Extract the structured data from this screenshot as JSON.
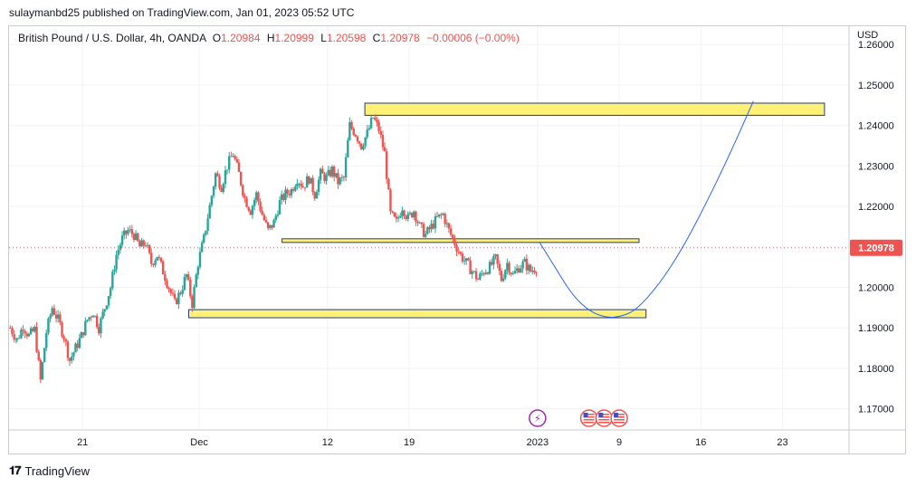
{
  "header": {
    "published": "sulaymanbd25 published on TradingView.com, Jan 01, 2023 05:52 UTC"
  },
  "legend": {
    "symbol": "British Pound / U.S. Dollar, 4h, OANDA",
    "o_label": "O",
    "o": "1.20984",
    "h_label": "H",
    "h": "1.20999",
    "l_label": "L",
    "l": "1.20598",
    "c_label": "C",
    "c": "1.20978",
    "change": "−0.00006 (−0.00%)"
  },
  "price_axis": {
    "currency": "USD"
  },
  "footer": {
    "brand": "TradingView"
  },
  "colors": {
    "up": "#26a69a",
    "down": "#ef5350",
    "zone_fill": "#fff176",
    "zone_border": "#1e3a8a",
    "projection": "#2962ff",
    "price_tag": "#ef5350"
  },
  "chart_data": {
    "type": "candlestick",
    "ylim": [
      1.165,
      1.2645
    ],
    "y_ticks": [
      "1.17000",
      "1.18000",
      "1.19000",
      "1.20000",
      "1.21000",
      "1.22000",
      "1.23000",
      "1.24000",
      "1.25000",
      "1.26000"
    ],
    "x_ticks": [
      {
        "label": "21",
        "x": 24
      },
      {
        "label": "Dec",
        "x": 34
      },
      {
        "label": "12",
        "x": 45
      },
      {
        "label": "19",
        "x": 52
      },
      {
        "label": "2023",
        "x": 63
      },
      {
        "label": "9",
        "x": 70
      },
      {
        "label": "16",
        "x": 77
      },
      {
        "label": "23",
        "x": 84
      }
    ],
    "xlim": [
      17.7,
      89.7
    ],
    "last_price": "1.20978",
    "last_value": 1.20978,
    "path": [
      [
        17.8,
        1.19
      ],
      [
        18.4,
        1.187
      ],
      [
        18.9,
        1.1905
      ],
      [
        19.4,
        1.188
      ],
      [
        19.9,
        1.1895
      ],
      [
        20.4,
        1.177
      ],
      [
        20.9,
        1.189
      ],
      [
        21.4,
        1.195
      ],
      [
        21.9,
        1.192
      ],
      [
        22.4,
        1.188
      ],
      [
        22.9,
        1.182
      ],
      [
        23.4,
        1.185
      ],
      [
        23.9,
        1.188
      ],
      [
        24.4,
        1.192
      ],
      [
        24.9,
        1.194
      ],
      [
        25.4,
        1.19
      ],
      [
        25.9,
        1.195
      ],
      [
        26.4,
        1.2
      ],
      [
        26.9,
        1.208
      ],
      [
        27.4,
        1.212
      ],
      [
        27.9,
        1.214
      ],
      [
        28.4,
        1.213
      ],
      [
        28.9,
        1.21
      ],
      [
        29.4,
        1.211
      ],
      [
        29.9,
        1.206
      ],
      [
        30.4,
        1.208
      ],
      [
        30.9,
        1.204
      ],
      [
        31.4,
        1.2
      ],
      [
        31.9,
        1.196
      ],
      [
        32.4,
        1.199
      ],
      [
        32.9,
        1.203
      ],
      [
        33.4,
        1.196
      ],
      [
        33.9,
        1.206
      ],
      [
        34.4,
        1.212
      ],
      [
        34.9,
        1.22
      ],
      [
        35.4,
        1.228
      ],
      [
        35.9,
        1.225
      ],
      [
        36.4,
        1.23
      ],
      [
        36.9,
        1.233
      ],
      [
        37.4,
        1.228
      ],
      [
        37.9,
        1.222
      ],
      [
        38.4,
        1.219
      ],
      [
        38.9,
        1.223
      ],
      [
        39.4,
        1.218
      ],
      [
        39.9,
        1.214
      ],
      [
        40.4,
        1.216
      ],
      [
        40.9,
        1.221
      ],
      [
        41.4,
        1.223
      ],
      [
        41.9,
        1.224
      ],
      [
        42.4,
        1.227
      ],
      [
        42.9,
        1.225
      ],
      [
        43.4,
        1.227
      ],
      [
        43.9,
        1.223
      ],
      [
        44.4,
        1.228
      ],
      [
        44.9,
        1.227
      ],
      [
        45.4,
        1.229
      ],
      [
        45.9,
        1.226
      ],
      [
        46.4,
        1.227
      ],
      [
        46.9,
        1.24
      ],
      [
        47.4,
        1.238
      ],
      [
        47.9,
        1.235
      ],
      [
        48.4,
        1.238
      ],
      [
        48.9,
        1.242
      ],
      [
        49.4,
        1.239
      ],
      [
        49.9,
        1.233
      ],
      [
        50.4,
        1.218
      ],
      [
        50.9,
        1.216
      ],
      [
        51.4,
        1.22
      ],
      [
        51.9,
        1.217
      ],
      [
        52.4,
        1.219
      ],
      [
        52.9,
        1.215
      ],
      [
        53.4,
        1.213
      ],
      [
        53.9,
        1.215
      ],
      [
        54.4,
        1.217
      ],
      [
        54.9,
        1.218
      ],
      [
        55.4,
        1.214
      ],
      [
        55.9,
        1.211
      ],
      [
        56.4,
        1.208
      ],
      [
        56.9,
        1.206
      ],
      [
        57.4,
        1.204
      ],
      [
        57.9,
        1.202
      ],
      [
        58.4,
        1.204
      ],
      [
        58.9,
        1.205
      ],
      [
        59.4,
        1.207
      ],
      [
        59.9,
        1.202
      ],
      [
        60.4,
        1.206
      ],
      [
        60.9,
        1.203
      ],
      [
        61.4,
        1.205
      ],
      [
        61.9,
        1.206
      ],
      [
        62.4,
        1.204
      ],
      [
        62.9,
        1.205
      ],
      [
        63.0,
        1.2098
      ]
    ],
    "zones": [
      {
        "name": "resistance-zone",
        "x1": 48.2,
        "x2": 87.6,
        "y1": 1.2455,
        "y2": 1.2425
      },
      {
        "name": "mid-zone",
        "x1": 41.1,
        "x2": 71.7,
        "y1": 1.212,
        "y2": 1.2111
      },
      {
        "name": "support-zone",
        "x1": 33.1,
        "x2": 72.3,
        "y1": 1.1945,
        "y2": 1.1925
      }
    ],
    "projection": [
      [
        63.2,
        1.211
      ],
      [
        64.5,
        1.205
      ],
      [
        66.0,
        1.198
      ],
      [
        67.5,
        1.194
      ],
      [
        68.9,
        1.1925
      ],
      [
        70.2,
        1.1928
      ],
      [
        71.5,
        1.1945
      ],
      [
        73.5,
        1.201
      ],
      [
        75.5,
        1.21
      ],
      [
        77.5,
        1.221
      ],
      [
        79.5,
        1.233
      ],
      [
        81.5,
        1.246
      ]
    ],
    "events": [
      {
        "name": "lightning-event-icon",
        "x": 63.0,
        "glyph": "⚡",
        "color": "#9c27b0"
      },
      {
        "name": "us-flag-event-icon-1",
        "x": 67.4,
        "glyph": "",
        "color": "#ef5350"
      },
      {
        "name": "us-flag-event-icon-2",
        "x": 68.7,
        "glyph": "",
        "color": "#ef5350"
      },
      {
        "name": "us-flag-event-icon-3",
        "x": 70.0,
        "glyph": "",
        "color": "#ef5350"
      }
    ]
  }
}
